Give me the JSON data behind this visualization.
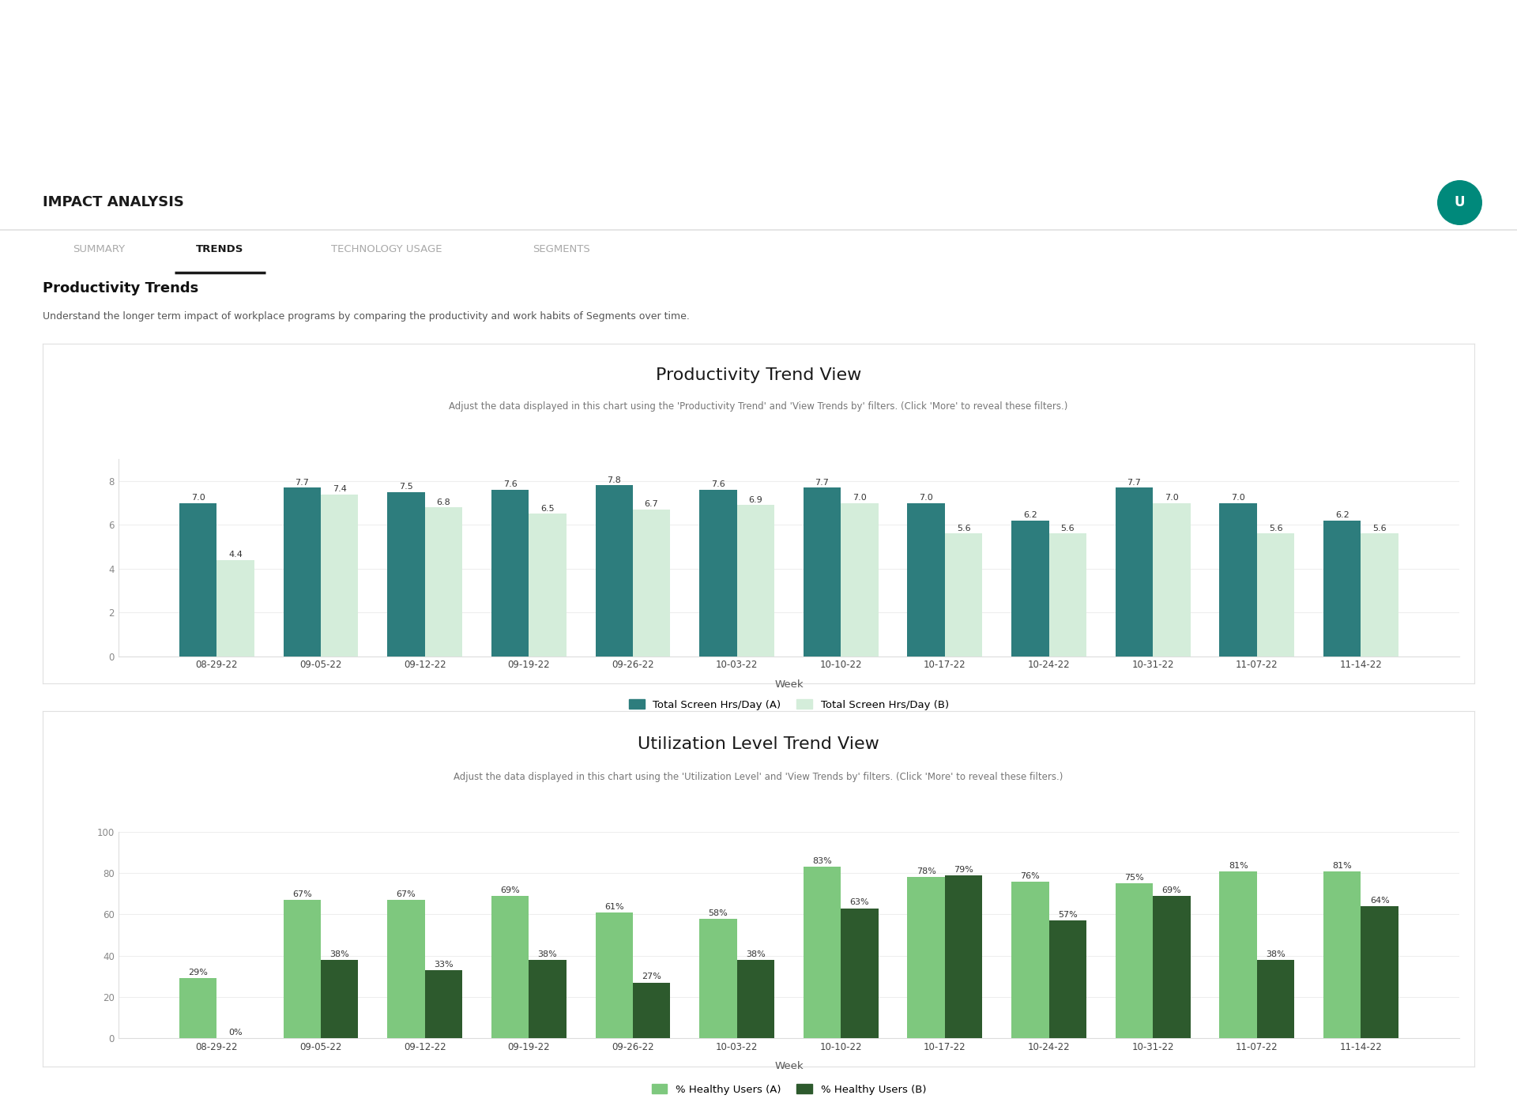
{
  "title": "IMPACT ANALYSIS",
  "tabs": [
    "SUMMARY",
    "TRENDS",
    "TECHNOLOGY USAGE",
    "SEGMENTS"
  ],
  "active_tab": "TRENDS",
  "section_title": "Productivity Trends",
  "section_subtitle": "Understand the longer term impact of workplace programs by comparing the productivity and work habits of Segments over time.",
  "chart1": {
    "title": "Productivity Trend View",
    "subtitle": "Adjust the data displayed in this chart using the 'Productivity Trend' and 'View Trends by' filters. (Click 'More' to reveal these filters.)",
    "xlabel": "Week",
    "weeks": [
      "08-29-22",
      "09-05-22",
      "09-12-22",
      "09-19-22",
      "09-26-22",
      "10-03-22",
      "10-10-22",
      "10-17-22",
      "10-24-22",
      "10-31-22",
      "11-07-22",
      "11-14-22"
    ],
    "series_a": [
      7.0,
      7.7,
      7.5,
      7.6,
      7.8,
      7.6,
      7.7,
      7.0,
      6.2,
      7.7,
      7.0,
      6.2
    ],
    "series_b": [
      4.4,
      7.4,
      6.8,
      6.5,
      6.7,
      6.9,
      7.0,
      5.6,
      5.6,
      7.0,
      5.6,
      5.6
    ],
    "color_a": "#2d7d7d",
    "color_b": "#d4edda",
    "legend_a": "Total Screen Hrs/Day (A)",
    "legend_b": "Total Screen Hrs/Day (B)",
    "ylim": [
      0,
      9
    ],
    "yticks": [
      0,
      2,
      4,
      6,
      8
    ]
  },
  "chart2": {
    "title": "Utilization Level Trend View",
    "subtitle": "Adjust the data displayed in this chart using the 'Utilization Level' and 'View Trends by' filters. (Click 'More' to reveal these filters.)",
    "xlabel": "Week",
    "weeks": [
      "08-29-22",
      "09-05-22",
      "09-12-22",
      "09-19-22",
      "09-26-22",
      "10-03-22",
      "10-10-22",
      "10-17-22",
      "10-24-22",
      "10-31-22",
      "11-07-22",
      "11-14-22"
    ],
    "series_a": [
      29,
      67,
      67,
      69,
      61,
      58,
      83,
      78,
      76,
      75,
      81,
      81
    ],
    "series_b": [
      0,
      38,
      33,
      38,
      27,
      38,
      63,
      79,
      57,
      69,
      38,
      64
    ],
    "color_a": "#7ec87e",
    "color_b": "#2d5a2d",
    "legend_a": "% Healthy Users (A)",
    "legend_b": "% Healthy Users (B)",
    "ylim": [
      0,
      100
    ],
    "yticks": [
      0,
      20,
      40,
      60,
      80,
      100
    ]
  },
  "bg_page": "#f0f0f0",
  "bg_white": "#ffffff",
  "card_border": "#e0e0e0",
  "teal_circle": "#00897b",
  "header_border": "#e0e0e0"
}
